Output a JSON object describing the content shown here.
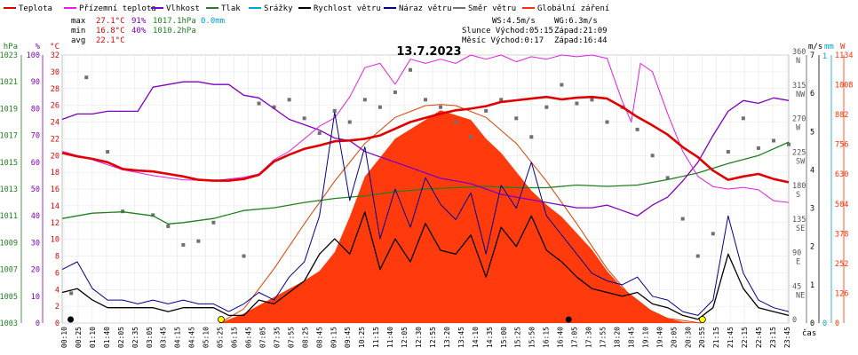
{
  "chart_data": {
    "type": "line",
    "title": "13.7.2023",
    "xlabel": "čas",
    "legend": [
      {
        "name": "Teplota",
        "color": "#e00000"
      },
      {
        "name": "Přízemní teplota",
        "color": "#e020e0"
      },
      {
        "name": "Vlhkost",
        "color": "#8000c0"
      },
      {
        "name": "Tlak",
        "color": "#208020"
      },
      {
        "name": "Srážky",
        "color": "#00a0d0"
      },
      {
        "name": "Rychlost větru",
        "color": "#000000"
      },
      {
        "name": "Náraz větru",
        "color": "#000090"
      },
      {
        "name": "Směr větru",
        "color": "#707070"
      },
      {
        "name": "Globální záření",
        "color": "#ff3000"
      }
    ],
    "stats": {
      "max": {
        "label": "max",
        "temp": "27.1°C",
        "hum": "91%",
        "press": "1017.1hPa",
        "rain": "0.0mm"
      },
      "min": {
        "label": "min",
        "temp": "16.8°C",
        "hum": "40%",
        "press": "1010.2hPa"
      },
      "avg": {
        "label": "avg",
        "temp": "22.1°C"
      }
    },
    "info": {
      "ws": "WS:4.5m/s",
      "wg": "WG:6.3m/s",
      "sun": "Slunce Východ:05:15",
      "sun_set": "Západ:21:09",
      "moon": "Měsíc Východ:0:17",
      "moon_set": "Západ:16:44"
    },
    "axes": {
      "hpa": {
        "unit": "hPa",
        "ticks": [
          "1003",
          "1005",
          "1007",
          "1009",
          "1011",
          "1013",
          "1015",
          "1017",
          "1019",
          "1021",
          "1023"
        ]
      },
      "pct": {
        "unit": "%",
        "ticks": [
          "0",
          "10",
          "20",
          "30",
          "40",
          "50",
          "60",
          "70",
          "80",
          "90",
          "100"
        ]
      },
      "temp": {
        "unit": "°C",
        "ticks": [
          "0",
          "2",
          "4",
          "6",
          "8",
          "10",
          "12",
          "14",
          "16",
          "18",
          "20",
          "22",
          "24",
          "26",
          "28",
          "30",
          "32"
        ]
      },
      "dir": {
        "ticks": [
          "0",
          "45",
          "90",
          "135",
          "180",
          "225",
          "270",
          "315",
          "360"
        ],
        "labels": [
          "",
          "NE",
          "E",
          "SE",
          "S",
          "SW",
          "W",
          "NW",
          "N"
        ]
      },
      "ms": {
        "unit": "m/s",
        "ticks": [
          "0",
          "1",
          "2",
          "3",
          "4",
          "5",
          "6",
          "7"
        ]
      },
      "mm": {
        "unit": "mm",
        "ticks": [
          "0",
          "1"
        ]
      },
      "w": {
        "unit": "W",
        "ticks": [
          "0",
          "126",
          "252",
          "378",
          "504",
          "630",
          "756",
          "882",
          "1008",
          "1134"
        ]
      }
    },
    "x_ticks": [
      "00:10",
      "00:25",
      "01:10",
      "01:40",
      "02:05",
      "02:35",
      "03:05",
      "03:45",
      "04:15",
      "04:45",
      "05:10",
      "05:25",
      "06:15",
      "06:45",
      "07:05",
      "07:35",
      "07:55",
      "08:25",
      "08:45",
      "09:15",
      "09:45",
      "10:25",
      "11:15",
      "11:40",
      "12:05",
      "12:30",
      "12:55",
      "13:20",
      "13:45",
      "14:10",
      "14:35",
      "15:00",
      "15:25",
      "15:50",
      "16:15",
      "16:40",
      "17:05",
      "17:30",
      "17:55",
      "18:20",
      "18:45",
      "19:10",
      "19:40",
      "20:05",
      "20:30",
      "20:55",
      "21:15",
      "21:45",
      "22:15",
      "22:45",
      "23:15",
      "23:45"
    ],
    "ylim_temp": [
      0,
      32
    ],
    "ylim_hum": [
      0,
      100
    ],
    "ylim_press": [
      1003,
      1023
    ],
    "ylim_wind": [
      0,
      7
    ],
    "ylim_rad": [
      0,
      1134
    ],
    "temperature": [
      [
        0,
        20.3
      ],
      [
        0.5,
        19.9
      ],
      [
        1,
        19.6
      ],
      [
        1.5,
        19.2
      ],
      [
        2,
        18.4
      ],
      [
        2.5,
        18.2
      ],
      [
        3,
        18.1
      ],
      [
        3.5,
        17.8
      ],
      [
        4,
        17.5
      ],
      [
        4.5,
        17.1
      ],
      [
        5,
        17.0
      ],
      [
        5.5,
        17.0
      ],
      [
        6,
        17.2
      ],
      [
        6.5,
        17.7
      ],
      [
        7,
        19.3
      ],
      [
        7.5,
        20.1
      ],
      [
        8,
        20.8
      ],
      [
        8.5,
        21.2
      ],
      [
        9,
        21.7
      ],
      [
        9.5,
        21.8
      ],
      [
        10,
        22.0
      ],
      [
        10.5,
        22.4
      ],
      [
        11,
        23.2
      ],
      [
        11.5,
        24.0
      ],
      [
        12,
        24.5
      ],
      [
        12.5,
        25.0
      ],
      [
        13,
        25.4
      ],
      [
        13.5,
        25.6
      ],
      [
        14,
        25.9
      ],
      [
        14.5,
        26.4
      ],
      [
        15,
        26.6
      ],
      [
        15.5,
        26.8
      ],
      [
        16,
        27.0
      ],
      [
        16.5,
        26.7
      ],
      [
        17,
        26.9
      ],
      [
        17.5,
        27.0
      ],
      [
        18,
        26.8
      ],
      [
        18.5,
        25.8
      ],
      [
        19,
        24.6
      ],
      [
        19.5,
        23.6
      ],
      [
        20,
        22.5
      ],
      [
        20.5,
        21.0
      ],
      [
        21,
        19.8
      ],
      [
        21.5,
        18.2
      ],
      [
        22,
        17.1
      ],
      [
        22.5,
        17.5
      ],
      [
        23,
        17.8
      ],
      [
        23.5,
        17.2
      ],
      [
        24,
        16.8
      ]
    ],
    "ground_temp": [
      [
        0,
        20.5
      ],
      [
        1,
        19.5
      ],
      [
        2,
        18.3
      ],
      [
        3,
        17.6
      ],
      [
        4,
        17.1
      ],
      [
        5,
        17.0
      ],
      [
        6,
        17.4
      ],
      [
        6.5,
        17.8
      ],
      [
        7,
        19.5
      ],
      [
        7.5,
        20.5
      ],
      [
        8,
        22.0
      ],
      [
        8.5,
        23.5
      ],
      [
        9,
        24.5
      ],
      [
        9.5,
        27.0
      ],
      [
        10,
        30.5
      ],
      [
        10.5,
        31.0
      ],
      [
        11,
        28.5
      ],
      [
        11.5,
        31.5
      ],
      [
        12,
        31.0
      ],
      [
        12.5,
        31.5
      ],
      [
        13,
        31.0
      ],
      [
        13.5,
        32.0
      ],
      [
        14,
        31.5
      ],
      [
        14.5,
        32.0
      ],
      [
        15,
        31.2
      ],
      [
        15.5,
        31.8
      ],
      [
        16,
        31.5
      ],
      [
        16.5,
        32.0
      ],
      [
        17,
        31.8
      ],
      [
        17.5,
        32.0
      ],
      [
        18,
        31.6
      ],
      [
        18.5,
        26.5
      ],
      [
        18.8,
        24.0
      ],
      [
        19.1,
        31.0
      ],
      [
        19.5,
        30.0
      ],
      [
        20,
        25.0
      ],
      [
        20.5,
        20.5
      ],
      [
        21,
        17.5
      ],
      [
        21.5,
        16.3
      ],
      [
        22,
        16.0
      ],
      [
        22.5,
        16.2
      ],
      [
        23,
        15.9
      ],
      [
        23.5,
        14.6
      ],
      [
        24,
        14.4
      ]
    ],
    "humidity": [
      [
        0,
        76
      ],
      [
        0.5,
        78
      ],
      [
        1,
        78
      ],
      [
        1.5,
        79
      ],
      [
        2,
        79
      ],
      [
        2.5,
        79
      ],
      [
        3,
        88
      ],
      [
        3.5,
        89
      ],
      [
        4,
        90
      ],
      [
        4.5,
        90
      ],
      [
        5,
        89
      ],
      [
        5.5,
        89
      ],
      [
        6,
        85
      ],
      [
        6.5,
        84
      ],
      [
        7,
        80
      ],
      [
        7.5,
        76
      ],
      [
        8,
        74
      ],
      [
        8.5,
        72
      ],
      [
        9,
        69
      ],
      [
        9.5,
        68
      ],
      [
        10,
        64
      ],
      [
        10.5,
        62
      ],
      [
        11,
        60
      ],
      [
        11.5,
        58
      ],
      [
        12,
        56
      ],
      [
        12.5,
        54
      ],
      [
        13,
        53
      ],
      [
        13.5,
        52
      ],
      [
        14,
        50
      ],
      [
        14.5,
        48
      ],
      [
        15,
        47
      ],
      [
        15.5,
        46
      ],
      [
        16,
        45
      ],
      [
        16.5,
        44
      ],
      [
        17,
        43
      ],
      [
        17.5,
        43
      ],
      [
        18,
        44
      ],
      [
        18.5,
        42
      ],
      [
        19,
        40
      ],
      [
        19.5,
        44
      ],
      [
        20,
        47
      ],
      [
        20.5,
        53
      ],
      [
        21,
        60
      ],
      [
        21.5,
        70
      ],
      [
        22,
        79
      ],
      [
        22.5,
        83
      ],
      [
        23,
        82
      ],
      [
        23.5,
        84
      ],
      [
        24,
        83
      ]
    ],
    "pressure": [
      [
        0,
        1010.8
      ],
      [
        1,
        1011.2
      ],
      [
        2,
        1011.3
      ],
      [
        3,
        1011.0
      ],
      [
        3.5,
        1010.4
      ],
      [
        4,
        1010.5
      ],
      [
        5,
        1010.8
      ],
      [
        6,
        1011.4
      ],
      [
        7,
        1011.6
      ],
      [
        8,
        1012.0
      ],
      [
        9,
        1012.3
      ],
      [
        10,
        1012.5
      ],
      [
        11,
        1012.8
      ],
      [
        12,
        1013.0
      ],
      [
        13,
        1013.1
      ],
      [
        14,
        1013.2
      ],
      [
        15,
        1013.1
      ],
      [
        16,
        1013.1
      ],
      [
        17,
        1013.3
      ],
      [
        18,
        1013.2
      ],
      [
        19,
        1013.3
      ],
      [
        20,
        1013.7
      ],
      [
        21,
        1014.2
      ],
      [
        22,
        1014.9
      ],
      [
        23,
        1015.5
      ],
      [
        24,
        1016.5
      ]
    ],
    "wind_speed": [
      [
        0,
        0.8
      ],
      [
        0.5,
        0.9
      ],
      [
        1,
        0.6
      ],
      [
        1.5,
        0.4
      ],
      [
        2,
        0.4
      ],
      [
        2.5,
        0.4
      ],
      [
        3,
        0.4
      ],
      [
        3.5,
        0.3
      ],
      [
        4,
        0.4
      ],
      [
        4.5,
        0.4
      ],
      [
        5,
        0.4
      ],
      [
        5.5,
        0.2
      ],
      [
        6,
        0.2
      ],
      [
        6.5,
        0.6
      ],
      [
        7,
        0.5
      ],
      [
        7.5,
        0.8
      ],
      [
        8,
        1.1
      ],
      [
        8.5,
        1.8
      ],
      [
        9,
        2.2
      ],
      [
        9.5,
        1.8
      ],
      [
        10,
        2.9
      ],
      [
        10.5,
        1.4
      ],
      [
        11,
        2.2
      ],
      [
        11.5,
        1.6
      ],
      [
        12,
        2.6
      ],
      [
        12.5,
        1.9
      ],
      [
        13,
        1.8
      ],
      [
        13.5,
        2.3
      ],
      [
        14,
        1.2
      ],
      [
        14.5,
        2.5
      ],
      [
        15,
        2.0
      ],
      [
        15.5,
        2.8
      ],
      [
        16,
        1.9
      ],
      [
        16.5,
        1.6
      ],
      [
        17,
        1.2
      ],
      [
        17.5,
        0.9
      ],
      [
        18,
        0.8
      ],
      [
        18.5,
        0.7
      ],
      [
        19,
        0.8
      ],
      [
        19.5,
        0.5
      ],
      [
        20,
        0.4
      ],
      [
        20.5,
        0.2
      ],
      [
        21,
        0.1
      ],
      [
        21.5,
        0.4
      ],
      [
        22,
        1.8
      ],
      [
        22.5,
        0.9
      ],
      [
        23,
        0.4
      ],
      [
        23.5,
        0.3
      ],
      [
        24,
        0.2
      ]
    ],
    "wind_gust": [
      [
        0,
        1.4
      ],
      [
        0.5,
        1.6
      ],
      [
        1,
        0.9
      ],
      [
        1.5,
        0.6
      ],
      [
        2,
        0.6
      ],
      [
        2.5,
        0.5
      ],
      [
        3,
        0.6
      ],
      [
        3.5,
        0.5
      ],
      [
        4,
        0.6
      ],
      [
        4.5,
        0.5
      ],
      [
        5,
        0.5
      ],
      [
        5.5,
        0.3
      ],
      [
        6,
        0.5
      ],
      [
        6.5,
        0.8
      ],
      [
        7,
        0.6
      ],
      [
        7.5,
        1.2
      ],
      [
        8,
        1.6
      ],
      [
        8.5,
        2.8
      ],
      [
        9,
        5.5
      ],
      [
        9.5,
        3.2
      ],
      [
        10,
        4.6
      ],
      [
        10.5,
        2.2
      ],
      [
        11,
        3.5
      ],
      [
        11.5,
        2.5
      ],
      [
        12,
        3.8
      ],
      [
        12.5,
        3.1
      ],
      [
        13,
        2.7
      ],
      [
        13.5,
        3.4
      ],
      [
        14,
        1.8
      ],
      [
        14.5,
        3.6
      ],
      [
        15,
        3.0
      ],
      [
        15.5,
        4.2
      ],
      [
        16,
        2.8
      ],
      [
        16.5,
        2.3
      ],
      [
        17,
        1.8
      ],
      [
        17.5,
        1.3
      ],
      [
        18,
        1.1
      ],
      [
        18.5,
        1.0
      ],
      [
        19,
        1.2
      ],
      [
        19.5,
        0.7
      ],
      [
        20,
        0.6
      ],
      [
        20.5,
        0.3
      ],
      [
        21,
        0.2
      ],
      [
        21.5,
        0.6
      ],
      [
        22,
        2.8
      ],
      [
        22.5,
        1.3
      ],
      [
        23,
        0.6
      ],
      [
        23.5,
        0.4
      ],
      [
        24,
        0.3
      ]
    ],
    "radiation_envelope": [
      [
        5.2,
        0
      ],
      [
        6,
        40
      ],
      [
        7,
        110
      ],
      [
        8,
        180
      ],
      [
        8.5,
        220
      ],
      [
        9,
        300
      ],
      [
        9.5,
        450
      ],
      [
        10,
        620
      ],
      [
        10.5,
        700
      ],
      [
        11,
        780
      ],
      [
        11.5,
        820
      ],
      [
        12,
        860
      ],
      [
        12.5,
        900
      ],
      [
        13,
        880
      ],
      [
        13.5,
        860
      ],
      [
        14,
        780
      ],
      [
        14.5,
        720
      ],
      [
        15,
        640
      ],
      [
        15.5,
        560
      ],
      [
        16,
        500
      ],
      [
        16.5,
        450
      ],
      [
        17,
        380
      ],
      [
        17.5,
        310
      ],
      [
        18,
        220
      ],
      [
        18.5,
        150
      ],
      [
        19,
        100
      ],
      [
        19.5,
        50
      ],
      [
        20,
        20
      ],
      [
        20.5,
        5
      ],
      [
        21.1,
        0
      ]
    ],
    "clear_sky": [
      [
        5.2,
        0
      ],
      [
        6,
        60
      ],
      [
        7,
        230
      ],
      [
        8,
        420
      ],
      [
        9,
        600
      ],
      [
        10,
        760
      ],
      [
        11,
        870
      ],
      [
        12,
        920
      ],
      [
        12.5,
        925
      ],
      [
        13,
        920
      ],
      [
        14,
        870
      ],
      [
        15,
        760
      ],
      [
        16,
        600
      ],
      [
        17,
        420
      ],
      [
        18,
        230
      ],
      [
        19,
        80
      ],
      [
        20,
        20
      ],
      [
        21.1,
        0
      ]
    ],
    "wind_dir": [
      [
        0.3,
        40
      ],
      [
        0.8,
        330
      ],
      [
        1.5,
        230
      ],
      [
        2,
        150
      ],
      [
        3,
        145
      ],
      [
        3.5,
        130
      ],
      [
        4,
        105
      ],
      [
        4.5,
        110
      ],
      [
        5,
        135
      ],
      [
        6,
        90
      ],
      [
        6.5,
        295
      ],
      [
        7,
        290
      ],
      [
        7.5,
        300
      ],
      [
        8,
        275
      ],
      [
        8.5,
        255
      ],
      [
        9,
        285
      ],
      [
        9.5,
        270
      ],
      [
        10,
        300
      ],
      [
        10.5,
        290
      ],
      [
        11,
        310
      ],
      [
        11.5,
        340
      ],
      [
        12,
        300
      ],
      [
        12.5,
        290
      ],
      [
        13,
        270
      ],
      [
        13.5,
        250
      ],
      [
        14,
        285
      ],
      [
        14.5,
        300
      ],
      [
        15,
        275
      ],
      [
        15.5,
        250
      ],
      [
        16,
        290
      ],
      [
        16.5,
        320
      ],
      [
        17,
        295
      ],
      [
        17.5,
        300
      ],
      [
        18,
        270
      ],
      [
        18.5,
        290
      ],
      [
        19,
        260
      ],
      [
        19.5,
        225
      ],
      [
        20,
        195
      ],
      [
        20.5,
        140
      ],
      [
        21,
        90
      ],
      [
        21.5,
        120
      ],
      [
        22,
        230
      ],
      [
        22.5,
        275
      ],
      [
        23,
        235
      ],
      [
        23.5,
        245
      ],
      [
        24,
        240
      ]
    ]
  }
}
